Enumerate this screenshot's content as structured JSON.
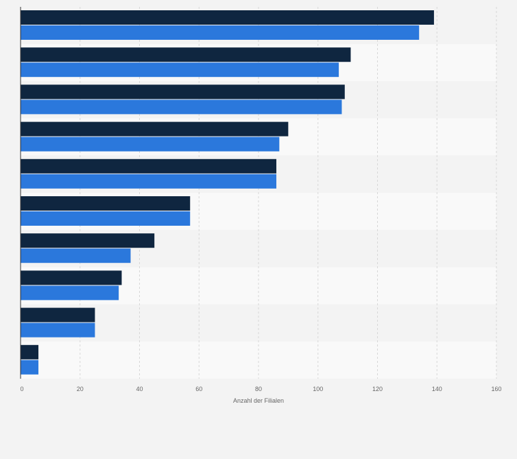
{
  "chart_data": {
    "type": "bar",
    "orientation": "horizontal",
    "title": "",
    "xlabel": "Anzahl der Filialen",
    "ylabel": "",
    "xlim": [
      0,
      160
    ],
    "x_ticks": [
      "0",
      "20",
      "40",
      "60",
      "80",
      "100",
      "120",
      "140",
      "160"
    ],
    "categories": [
      "",
      "",
      "",
      "",
      "",
      "",
      "",
      "",
      "",
      ""
    ],
    "series": [
      {
        "color": "#0f2640",
        "values": [
          139,
          111,
          109,
          90,
          86,
          57,
          45,
          34,
          25,
          6
        ]
      },
      {
        "color": "#2b78dc",
        "values": [
          134,
          107,
          108,
          87,
          86,
          57,
          37,
          33,
          25,
          6
        ]
      }
    ],
    "grid": true,
    "legend": "none",
    "colors": {
      "background": "#f3f3f3",
      "band_light": "#f9f9f9",
      "band_dark": "#f3f3f3",
      "gridline": "#d7d7d7",
      "axis": "#333333",
      "text": "#666666"
    }
  }
}
